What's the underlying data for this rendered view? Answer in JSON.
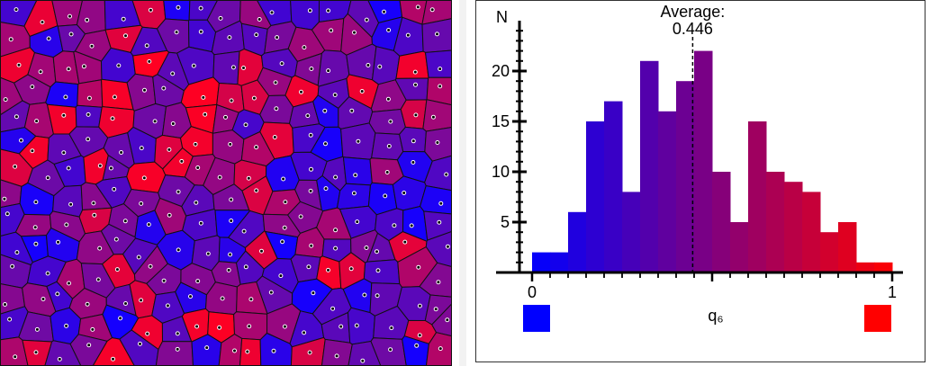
{
  "voronoi": {
    "colors": {
      "blue": "#1400ff",
      "purple": "#6e0aa5",
      "red": "#ff0022"
    }
  },
  "chart_data": {
    "type": "bar",
    "ylabel": "N",
    "xlabel": "q₆",
    "x_ticks": [
      "0",
      "1"
    ],
    "y_ticks": [
      "5",
      "10",
      "15",
      "20"
    ],
    "ylim": [
      0,
      24
    ],
    "xlim": [
      0,
      1
    ],
    "bin_edges": [
      0.0,
      0.05,
      0.1,
      0.15,
      0.2,
      0.25,
      0.3,
      0.35,
      0.4,
      0.45,
      0.5,
      0.55,
      0.6,
      0.65,
      0.7,
      0.75,
      0.8,
      0.85,
      0.9,
      0.95,
      1.0
    ],
    "values": [
      2,
      2,
      6,
      15,
      17,
      8,
      21,
      16,
      19,
      22,
      10,
      5,
      15,
      10,
      9,
      8,
      4,
      5,
      1,
      1
    ],
    "average": {
      "label": "Average:",
      "value": "0.446",
      "x": 0.446
    },
    "legend": {
      "low_color": "#0000ff",
      "high_color": "#ff0000"
    },
    "grid": false
  }
}
